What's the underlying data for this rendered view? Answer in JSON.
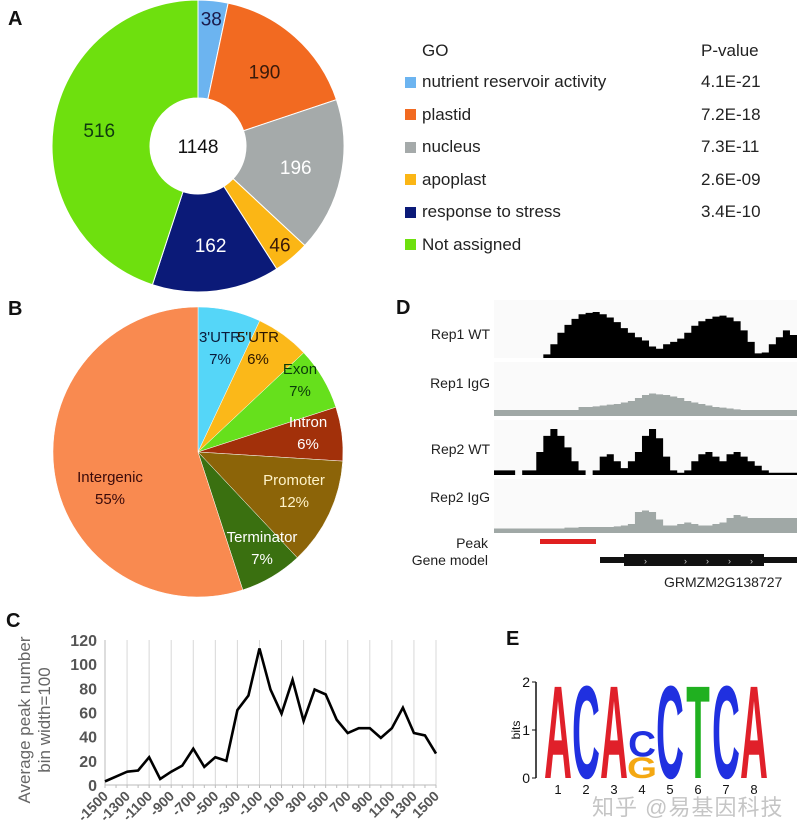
{
  "panels": {
    "A": "A",
    "B": "B",
    "C": "C",
    "D": "D",
    "E": "E"
  },
  "chart_data": [
    {
      "id": "A",
      "type": "pie",
      "variant": "donut",
      "center_label": "1148",
      "slices": [
        {
          "label": "nutrient reservoir activity",
          "value": 38,
          "color": "#6cb4f0",
          "text_color": "#1a1a4a",
          "p_value": "4.1E-21"
        },
        {
          "label": "plastid",
          "value": 190,
          "color": "#f26a21",
          "text_color": "#3a1a0a",
          "p_value": "7.2E-18"
        },
        {
          "label": "nucleus",
          "value": 196,
          "color": "#a5aaaa",
          "text_color": "#ffffff",
          "p_value": "7.3E-11"
        },
        {
          "label": "apoplast",
          "value": 46,
          "color": "#fbb615",
          "text_color": "#3a1a0a",
          "p_value": "2.6E-09"
        },
        {
          "label": "response to stress",
          "value": 162,
          "color": "#0b1a78",
          "text_color": "#ffffff",
          "p_value": "3.4E-10"
        },
        {
          "label": "Not assigned",
          "value": 516,
          "color": "#6ee00e",
          "text_color": "#0f3a0f",
          "p_value": ""
        }
      ],
      "legend": {
        "header_name": "GO",
        "header_p": "P-value",
        "placement": "right"
      }
    },
    {
      "id": "B",
      "type": "pie",
      "slices": [
        {
          "label": "3'UTR",
          "pct": "7%",
          "value": 7,
          "color": "#55d6f8",
          "text_color": "#0a1a3a"
        },
        {
          "label": "5'UTR",
          "pct": "6%",
          "value": 6,
          "color": "#fbb819",
          "text_color": "#2a1500"
        },
        {
          "label": "Exon",
          "pct": "7%",
          "value": 7,
          "color": "#66e01c",
          "text_color": "#0a3a0a"
        },
        {
          "label": "Intron",
          "pct": "6%",
          "value": 6,
          "color": "#a2300a",
          "text_color": "#ffffff"
        },
        {
          "label": "Promoter",
          "pct": "12%",
          "value": 12,
          "color": "#8c6408",
          "text_color": "#fff3c8"
        },
        {
          "label": "Terminator",
          "pct": "7%",
          "value": 7,
          "color": "#3a7010",
          "text_color": "#ffffff"
        },
        {
          "label": "Intergenic",
          "pct": "55%",
          "value": 55,
          "color": "#f98a50",
          "text_color": "#3a0a0a"
        }
      ]
    },
    {
      "id": "C",
      "type": "line",
      "ylabel_line1": "Average peak number",
      "ylabel_line2": "bin width=100",
      "xlabel": "",
      "ylim": [
        0,
        120
      ],
      "yticks": [
        0,
        20,
        40,
        60,
        80,
        100,
        120
      ],
      "xtick_labels": [
        "-1500",
        "-1300",
        "-1100",
        "-900",
        "-700",
        "-500",
        "-300",
        "-100",
        "100",
        "300",
        "500",
        "700",
        "900",
        "1100",
        "1300",
        "1500"
      ],
      "grid": "vertical",
      "x": [
        -1500,
        -1400,
        -1300,
        -1200,
        -1100,
        -1000,
        -900,
        -800,
        -700,
        -600,
        -500,
        -400,
        -300,
        -200,
        -100,
        0,
        100,
        200,
        300,
        400,
        500,
        600,
        700,
        800,
        900,
        1000,
        1100,
        1200,
        1300,
        1400,
        1500
      ],
      "series": [
        {
          "name": "peaks",
          "color": "#000000",
          "values": [
            3,
            7,
            11,
            12,
            23,
            5,
            11,
            16,
            30,
            15,
            23,
            20,
            62,
            74,
            113,
            79,
            59,
            87,
            53,
            79,
            75,
            54,
            43,
            47,
            47,
            39,
            47,
            64,
            43,
            41,
            26
          ]
        }
      ]
    },
    {
      "id": "D",
      "type": "area",
      "tracks": [
        {
          "label": "Rep1 WT",
          "color": "#000000"
        },
        {
          "label": "Rep1 IgG",
          "color": "#a0a8a6"
        },
        {
          "label": "Rep2 WT",
          "color": "#000000"
        },
        {
          "label": "Rep2 IgG",
          "color": "#a0a8a6"
        }
      ],
      "peak_label": "Peak",
      "peak_color": "#e02020",
      "gene_model_label": "Gene model",
      "gene_name": "GRMZM2G138727"
    },
    {
      "id": "E",
      "type": "sequence-logo",
      "ylabel": "bits",
      "ylim": [
        0,
        2
      ],
      "yticks": [
        0,
        1,
        2
      ],
      "positions": [
        {
          "pos": "1",
          "letters": [
            {
              "l": "A",
              "bits": 2.0,
              "color": "#e0202a"
            }
          ]
        },
        {
          "pos": "2",
          "letters": [
            {
              "l": "C",
              "bits": 2.0,
              "color": "#2030e0"
            }
          ]
        },
        {
          "pos": "3",
          "letters": [
            {
              "l": "A",
              "bits": 2.0,
              "color": "#e0202a"
            }
          ]
        },
        {
          "pos": "4",
          "letters": [
            {
              "l": "G",
              "bits": 0.45,
              "color": "#f4a812"
            },
            {
              "l": "C",
              "bits": 0.55,
              "color": "#2030e0"
            }
          ]
        },
        {
          "pos": "5",
          "letters": [
            {
              "l": "C",
              "bits": 2.0,
              "color": "#2030e0"
            }
          ]
        },
        {
          "pos": "6",
          "letters": [
            {
              "l": "T",
              "bits": 2.0,
              "color": "#20b020"
            }
          ]
        },
        {
          "pos": "7",
          "letters": [
            {
              "l": "C",
              "bits": 2.0,
              "color": "#2030e0"
            }
          ]
        },
        {
          "pos": "8",
          "letters": [
            {
              "l": "A",
              "bits": 2.0,
              "color": "#e0202a"
            }
          ]
        }
      ]
    }
  ],
  "watermark": "知乎 @易基因科技"
}
